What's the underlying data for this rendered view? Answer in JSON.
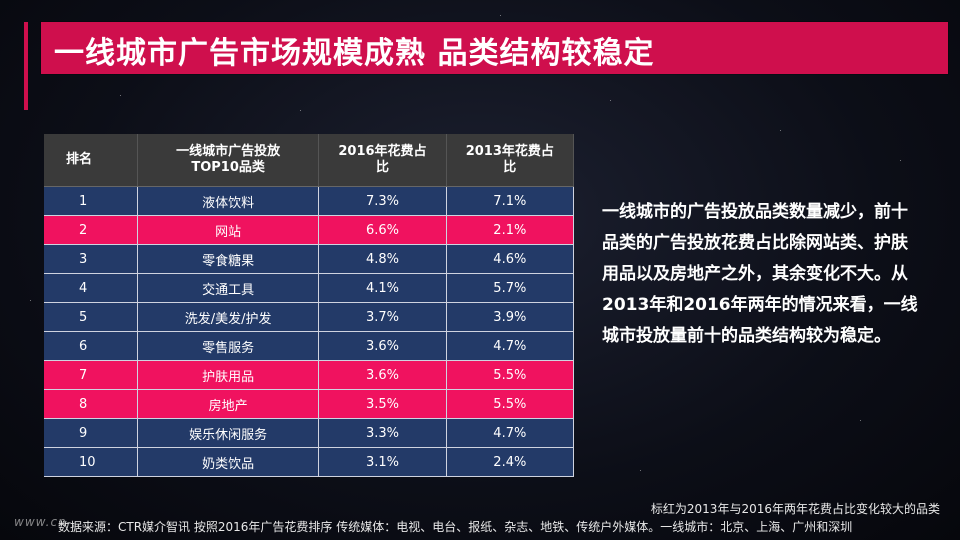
{
  "title": "一线城市广告市场规模成熟 品类结构较稳定",
  "table": {
    "headers": [
      "排名",
      "一线城市广告投放TOP10品类",
      "2016年花费占比",
      "2013年花费占比"
    ],
    "rows": [
      {
        "rank": "1",
        "category": "液体饮料",
        "y2016": "7.3%",
        "y2013": "7.1%",
        "highlight": false
      },
      {
        "rank": "2",
        "category": "网站",
        "y2016": "6.6%",
        "y2013": "2.1%",
        "highlight": true
      },
      {
        "rank": "3",
        "category": "零食糖果",
        "y2016": "4.8%",
        "y2013": "4.6%",
        "highlight": false
      },
      {
        "rank": "4",
        "category": "交通工具",
        "y2016": "4.1%",
        "y2013": "5.7%",
        "highlight": false
      },
      {
        "rank": "5",
        "category": "洗发/美发/护发",
        "y2016": "3.7%",
        "y2013": "3.9%",
        "highlight": false
      },
      {
        "rank": "6",
        "category": "零售服务",
        "y2016": "3.6%",
        "y2013": "4.7%",
        "highlight": false
      },
      {
        "rank": "7",
        "category": "护肤用品",
        "y2016": "3.6%",
        "y2013": "5.5%",
        "highlight": true
      },
      {
        "rank": "8",
        "category": "房地产",
        "y2016": "3.5%",
        "y2013": "5.5%",
        "highlight": true
      },
      {
        "rank": "9",
        "category": "娱乐休闲服务",
        "y2016": "3.3%",
        "y2013": "4.7%",
        "highlight": false
      },
      {
        "rank": "10",
        "category": "奶类饮品",
        "y2016": "3.1%",
        "y2013": "2.4%",
        "highlight": false
      }
    ]
  },
  "description": "一线城市的广告投放品类数量减少，前十品类的广告投放花费占比除网站类、护肤用品以及房地产之外，其余变化不大。从2013年和2016年两年的情况来看，一线城市投放量前十的品类结构较为稳定。",
  "note": "标红为2013年与2016年两年花费占比变化较大的品类",
  "source": "数据来源：CTR媒介智讯 按照2016年广告花费排序  传统媒体：电视、电台、报纸、杂志、地铁、传统户外媒体。一线城市：北京、上海、广州和深圳",
  "watermark": "www.cn-...",
  "colors": {
    "accent": "#cf0f4d",
    "row_normal": "#233a68",
    "row_highlight": "#f0125f",
    "header": "#3a3a3a"
  }
}
